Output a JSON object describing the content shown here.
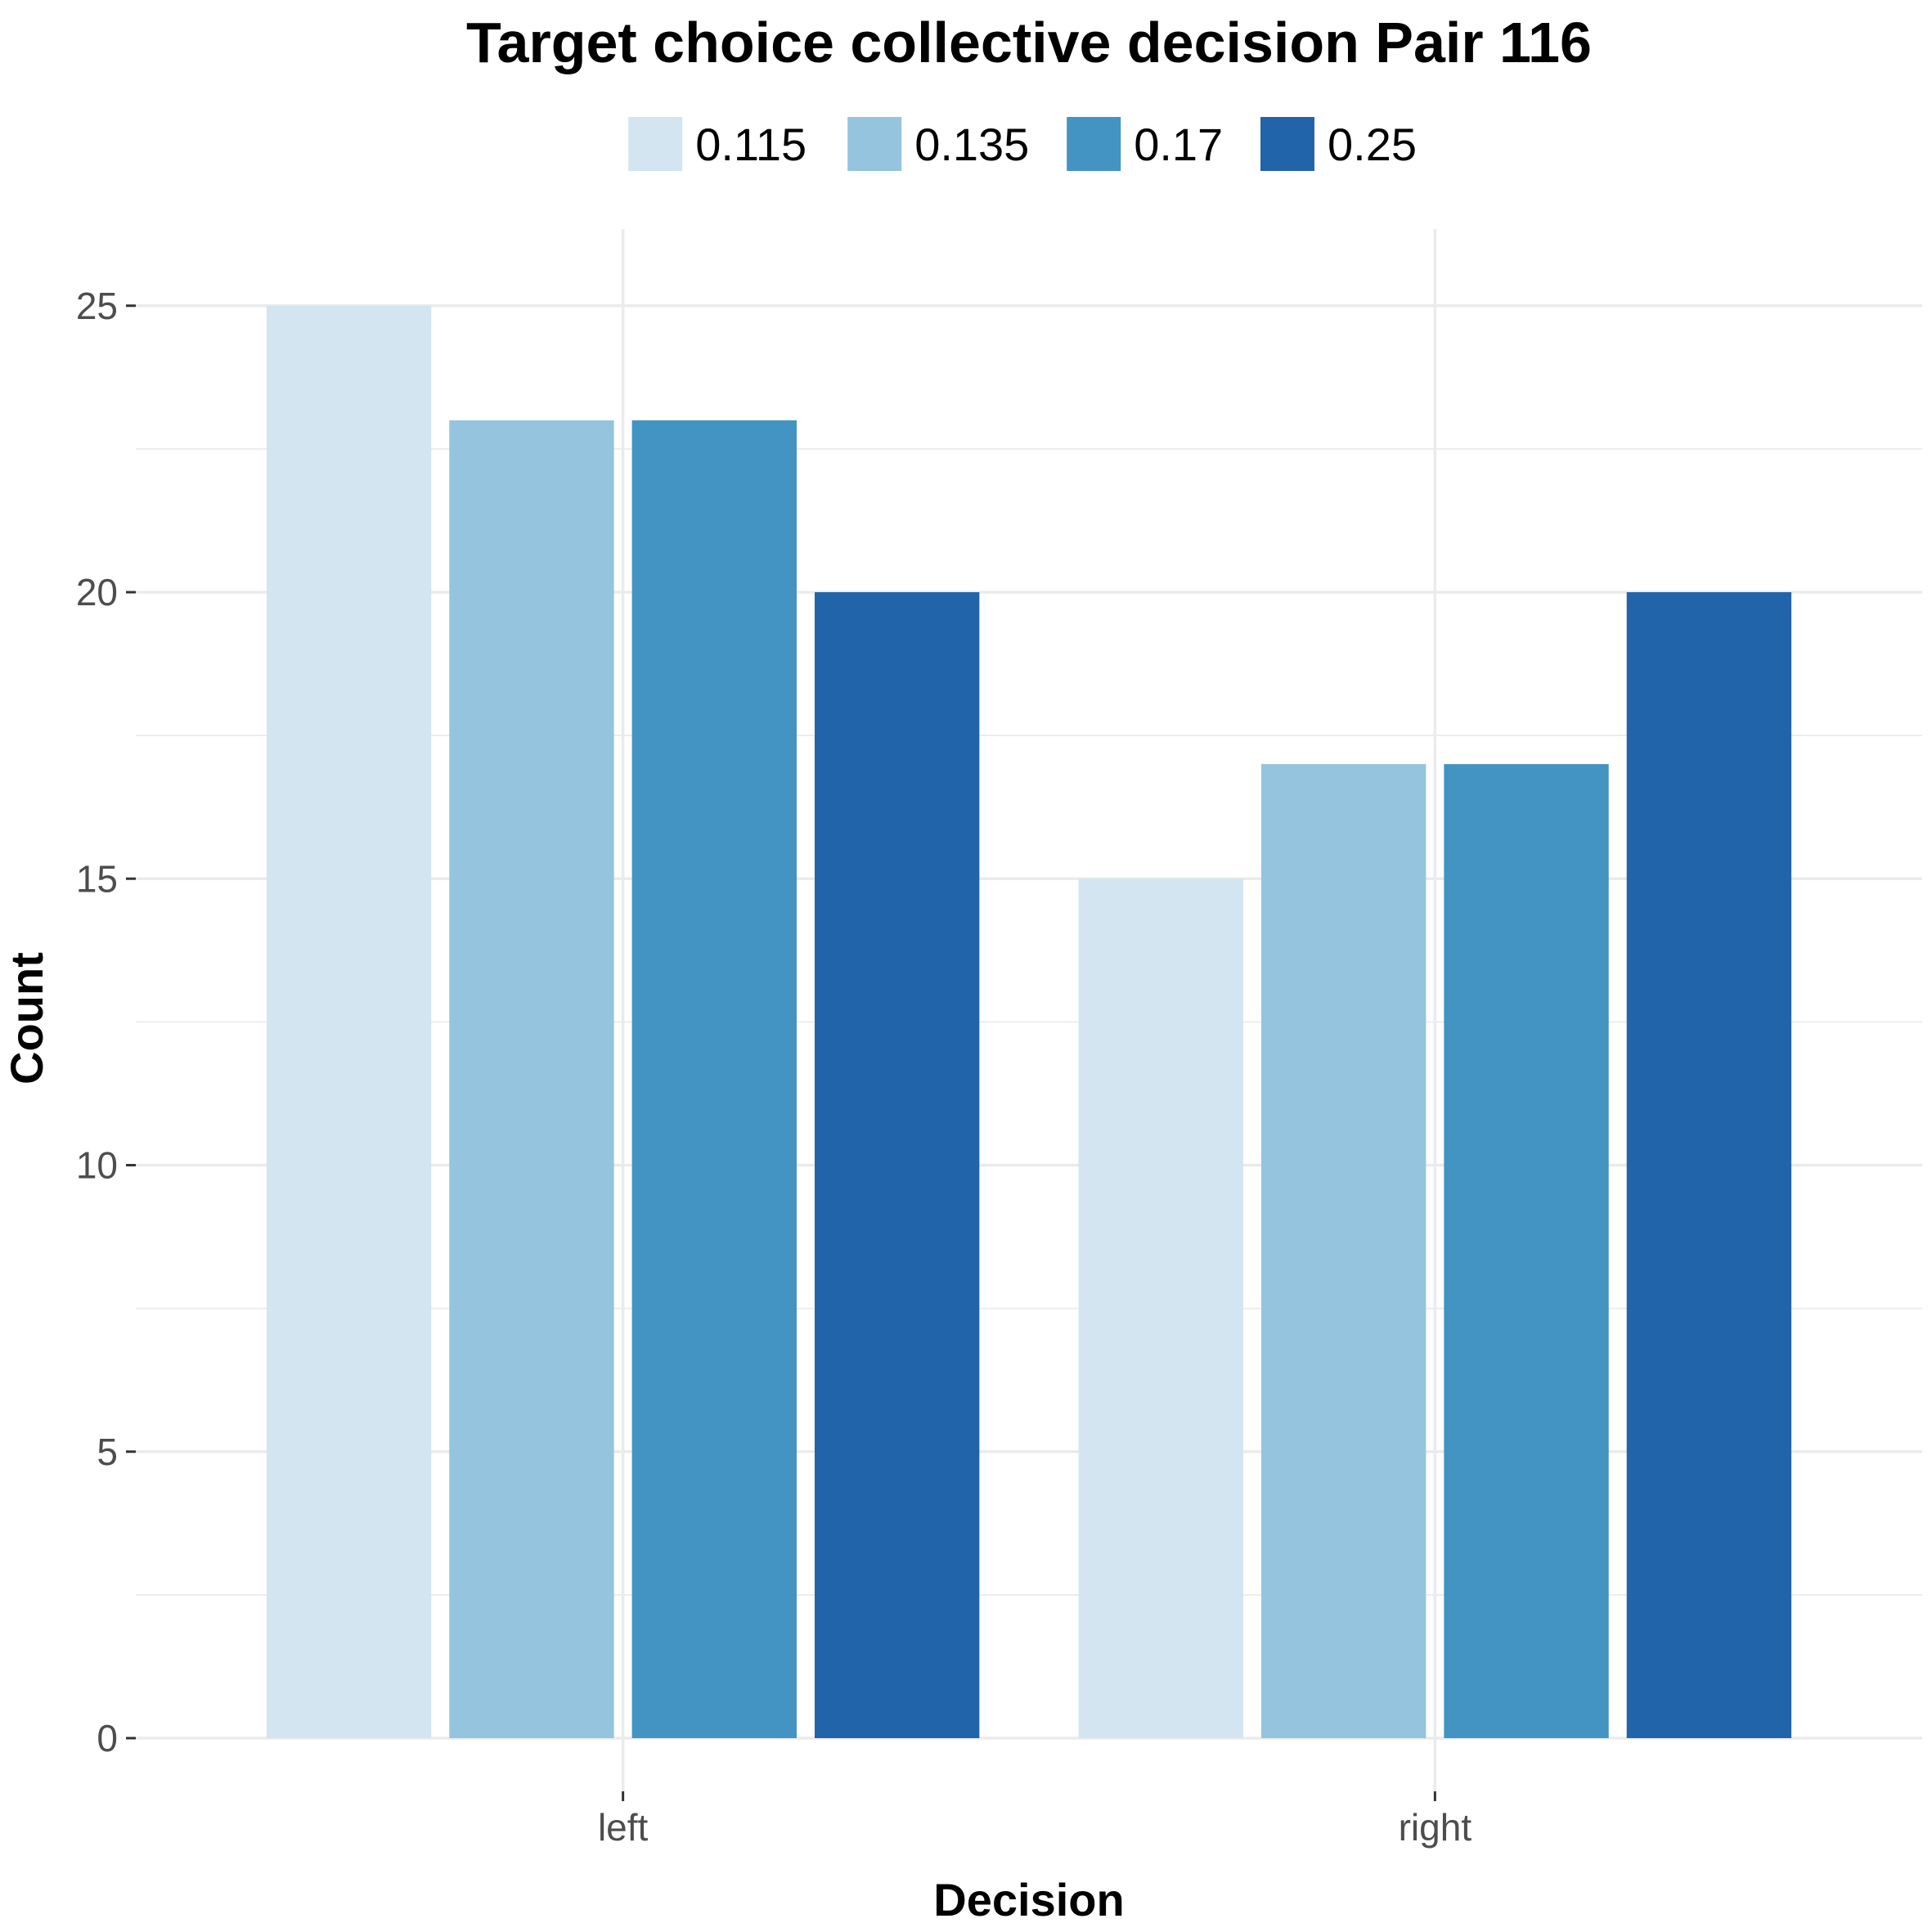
{
  "chart_data": {
    "type": "bar",
    "title": "Target choice collective decision Pair 116",
    "xlabel": "Decision",
    "ylabel": "Count",
    "categories": [
      "left",
      "right"
    ],
    "series": [
      {
        "name": "0.115",
        "color": "#d3e5f0",
        "values": [
          25,
          15
        ]
      },
      {
        "name": "0.135",
        "color": "#94c4de",
        "values": [
          23,
          17
        ]
      },
      {
        "name": "0.17",
        "color": "#4393c3",
        "values": [
          23,
          17
        ]
      },
      {
        "name": "0.25",
        "color": "#2264aa",
        "values": [
          20,
          20
        ]
      }
    ],
    "ylim": [
      0,
      26
    ],
    "yticks": [
      "0",
      "5",
      "10",
      "15",
      "20",
      "25"
    ],
    "grid": true,
    "legend_position": "top"
  }
}
